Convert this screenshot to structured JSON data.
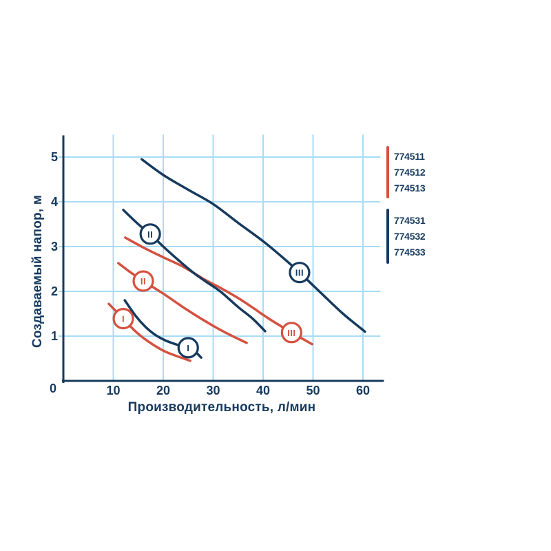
{
  "chart_data": {
    "type": "line",
    "title": "",
    "xlabel": "Производительность, л/мин",
    "ylabel": "Создаваемый напор, м",
    "xlim": [
      0,
      63.5
    ],
    "ylim": [
      0,
      5.5
    ],
    "x_ticks": [
      10,
      20,
      30,
      40,
      50,
      60
    ],
    "y_ticks": [
      1,
      2,
      3,
      4,
      5
    ],
    "origin_label": "0",
    "grid": true,
    "legend_position": "right-top",
    "colors": {
      "red": "#D5503F",
      "navy": "#163A5E",
      "grid": "#A7DCF5",
      "axis": "#163A5E",
      "text": "#163A5E",
      "background": "#FFFFFF"
    },
    "series": [
      {
        "id": "red-I",
        "color_key": "red",
        "marker_label": "I",
        "marker_at": [
          12,
          1.39
        ],
        "points": [
          [
            9.1,
            1.72
          ],
          [
            12,
            1.39
          ],
          [
            14.5,
            1.1
          ],
          [
            17,
            0.88
          ],
          [
            20.5,
            0.65
          ],
          [
            25.4,
            0.45
          ]
        ]
      },
      {
        "id": "red-II",
        "color_key": "red",
        "marker_label": "II",
        "marker_at": [
          16,
          2.23
        ],
        "points": [
          [
            11,
            2.63
          ],
          [
            13.5,
            2.42
          ],
          [
            16,
            2.23
          ],
          [
            20,
            1.95
          ],
          [
            25,
            1.57
          ],
          [
            30,
            1.23
          ],
          [
            33.5,
            1.02
          ],
          [
            36.7,
            0.85
          ]
        ]
      },
      {
        "id": "red-III",
        "color_key": "red",
        "marker_label": "III",
        "marker_at": [
          45.7,
          1.08
        ],
        "points": [
          [
            12.4,
            3.2
          ],
          [
            16,
            2.98
          ],
          [
            20,
            2.76
          ],
          [
            24,
            2.55
          ],
          [
            28.5,
            2.25
          ],
          [
            31.4,
            2.08
          ],
          [
            35,
            1.85
          ],
          [
            38,
            1.63
          ],
          [
            41,
            1.4
          ],
          [
            45.7,
            1.08
          ],
          [
            49.8,
            0.82
          ]
        ]
      },
      {
        "id": "navy-I",
        "color_key": "navy",
        "marker_label": "I",
        "marker_at": [
          25,
          0.74
        ],
        "points": [
          [
            12.3,
            1.8
          ],
          [
            14.5,
            1.45
          ],
          [
            16.5,
            1.2
          ],
          [
            18.5,
            1.02
          ],
          [
            20.5,
            0.9
          ],
          [
            23,
            0.8
          ],
          [
            25,
            0.74
          ],
          [
            26.4,
            0.65
          ],
          [
            27.6,
            0.52
          ]
        ]
      },
      {
        "id": "navy-II",
        "color_key": "navy",
        "marker_label": "II",
        "marker_at": [
          17.4,
          3.28
        ],
        "points": [
          [
            12,
            3.82
          ],
          [
            15,
            3.5
          ],
          [
            17.4,
            3.28
          ],
          [
            20,
            3.0
          ],
          [
            23,
            2.7
          ],
          [
            26,
            2.42
          ],
          [
            28.5,
            2.22
          ],
          [
            31.4,
            2.0
          ],
          [
            35,
            1.65
          ],
          [
            38,
            1.38
          ],
          [
            40.4,
            1.11
          ]
        ]
      },
      {
        "id": "navy-III",
        "color_key": "navy",
        "marker_label": "III",
        "marker_at": [
          47.3,
          2.42
        ],
        "points": [
          [
            15.7,
            4.95
          ],
          [
            20,
            4.6
          ],
          [
            25,
            4.27
          ],
          [
            30,
            3.95
          ],
          [
            35,
            3.53
          ],
          [
            40,
            3.12
          ],
          [
            44,
            2.75
          ],
          [
            47.3,
            2.42
          ],
          [
            52,
            1.92
          ],
          [
            56,
            1.5
          ],
          [
            60.4,
            1.1
          ]
        ]
      }
    ],
    "legend": {
      "groups": [
        {
          "color_key": "red",
          "items": [
            "774511",
            "774512",
            "774513"
          ]
        },
        {
          "color_key": "navy",
          "items": [
            "774531",
            "774532",
            "774533"
          ]
        }
      ]
    }
  }
}
